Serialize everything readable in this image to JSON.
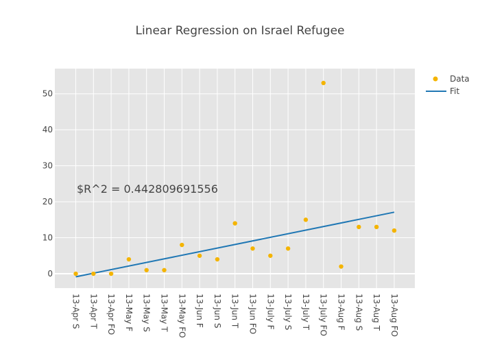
{
  "chart_data": {
    "type": "scatter",
    "title": "Linear Regression on Israel Refugee",
    "xlabel": "",
    "ylabel": "",
    "categories": [
      "13-Apr S",
      "13-Apr T",
      "13-Apr FO",
      "13-May F",
      "13-May S",
      "13-May T",
      "13-May FO",
      "13-Jun F",
      "13-Jun S",
      "13-Jun T",
      "13-Jun FO",
      "13-July F",
      "13-July S",
      "13-July T",
      "13-July FO",
      "13-Aug F",
      "13-Aug S",
      "13-Aug T",
      "13-Aug FO"
    ],
    "ylim": [
      -4,
      57
    ],
    "yticks": [
      0,
      10,
      20,
      30,
      40,
      50
    ],
    "grid": true,
    "legend_position": "top-right",
    "series": [
      {
        "name": "Data",
        "mode": "markers",
        "color": "#f4b400",
        "values": [
          0,
          0,
          0,
          4,
          1,
          1,
          8,
          5,
          4,
          14,
          7,
          5,
          7,
          15,
          53,
          2,
          13,
          13,
          12
        ]
      },
      {
        "name": "Fit",
        "mode": "line",
        "color": "#1f77b4",
        "values": [
          -0.85,
          17.1
        ]
      }
    ],
    "annotation": "$R^2 = 0.442809691556"
  }
}
